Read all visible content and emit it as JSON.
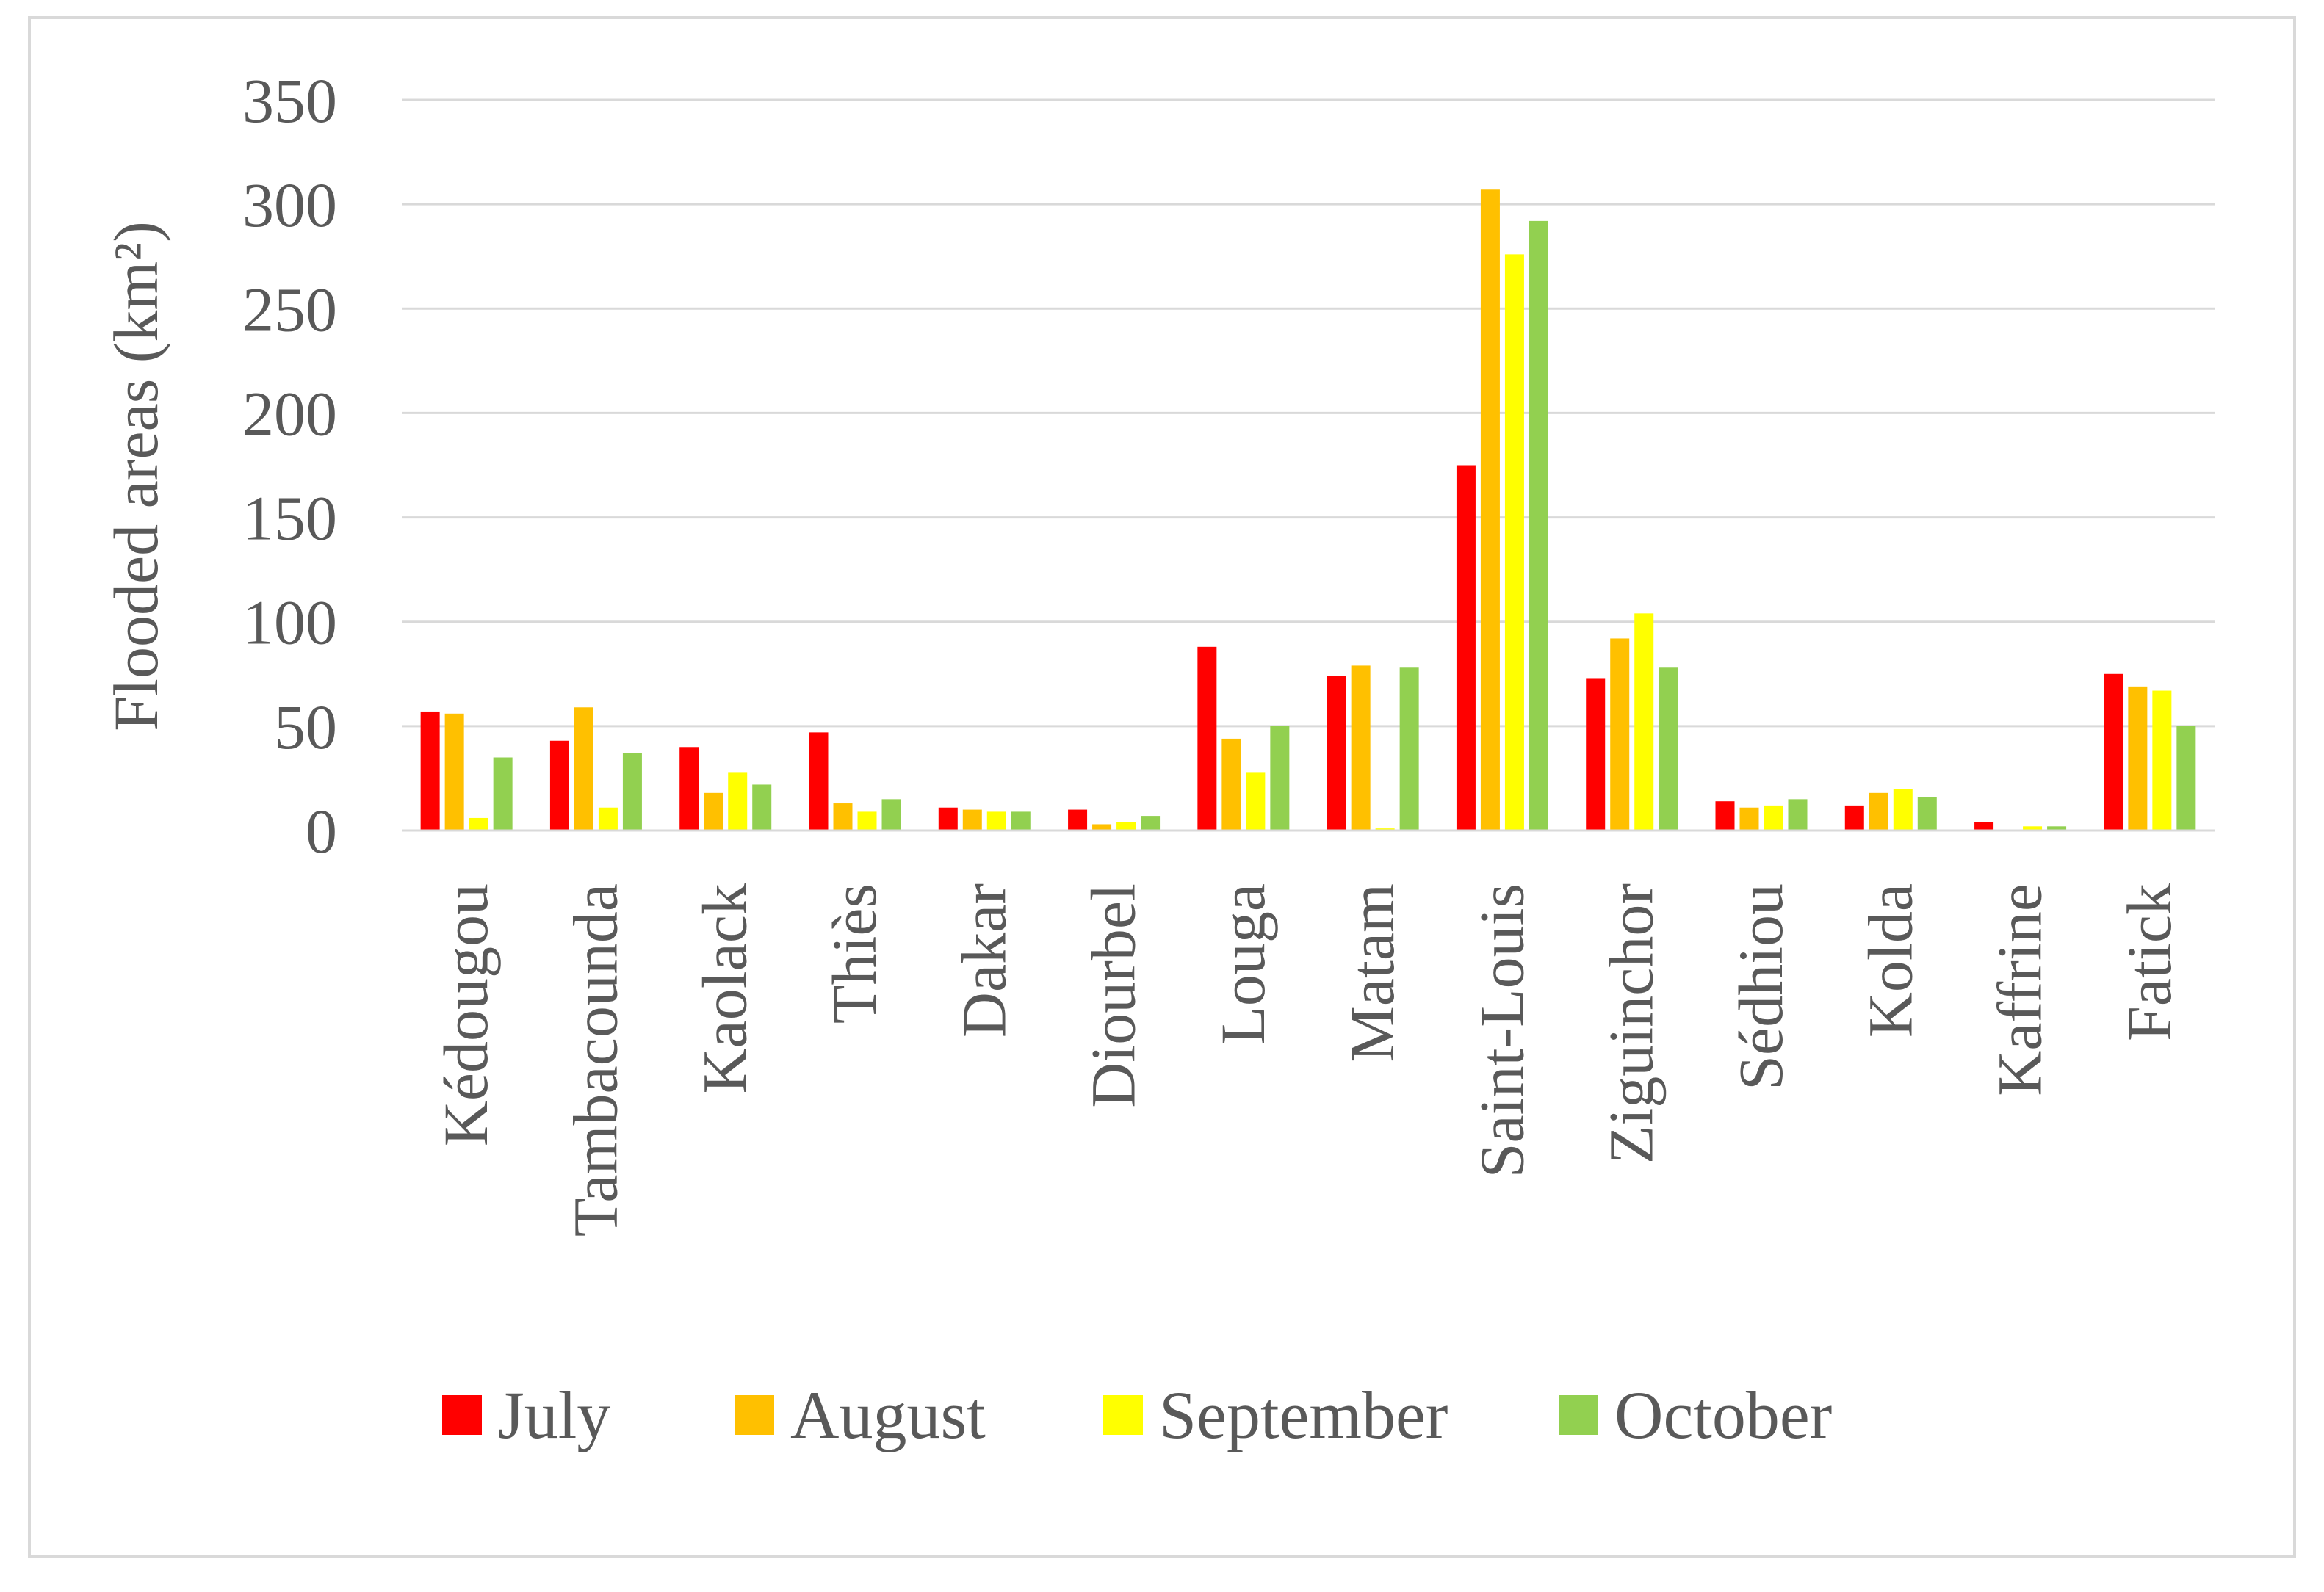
{
  "chart_data": {
    "type": "bar",
    "ylabel": "Flooded areas (km²)",
    "xlabel": "",
    "ylim": [
      0,
      350
    ],
    "yticks": [
      0,
      50,
      100,
      150,
      200,
      250,
      300,
      350
    ],
    "grid": true,
    "legend_position": "bottom",
    "categories": [
      "Kédougou",
      "Tambacounda",
      "Kaolack",
      "Thiès",
      "Dakar",
      "Diourbel",
      "Louga",
      "Matam",
      "Saint-Louis",
      "Ziguinchor",
      "Sédhiou",
      "Kolda",
      "Kaffrine",
      "Fatick"
    ],
    "series": [
      {
        "name": "July",
        "color": "#ff0000",
        "values": [
          57,
          43,
          40,
          47,
          11,
          10,
          88,
          74,
          175,
          73,
          14,
          12,
          4,
          75
        ]
      },
      {
        "name": "August",
        "color": "#ffc000",
        "values": [
          56,
          59,
          18,
          13,
          10,
          3,
          44,
          79,
          307,
          92,
          11,
          18,
          0,
          69
        ]
      },
      {
        "name": "September",
        "color": "#ffff00",
        "values": [
          6,
          11,
          28,
          9,
          9,
          4,
          28,
          1,
          276,
          104,
          12,
          20,
          2,
          67
        ]
      },
      {
        "name": "October",
        "color": "#92d050",
        "values": [
          35,
          37,
          22,
          15,
          9,
          7,
          50,
          78,
          292,
          78,
          15,
          16,
          2,
          50
        ]
      }
    ]
  }
}
